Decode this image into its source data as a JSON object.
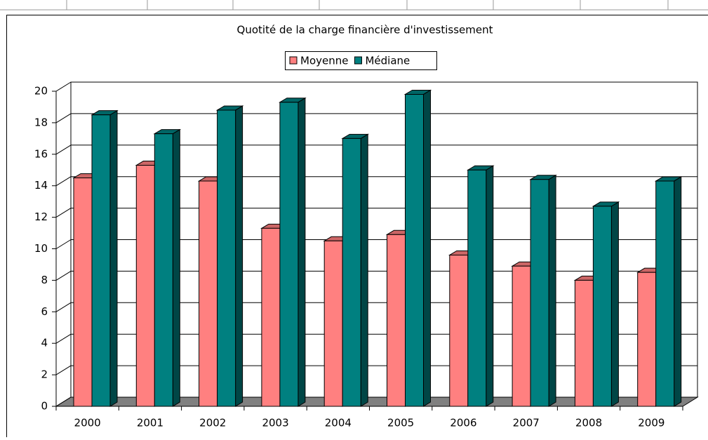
{
  "chart_data": {
    "type": "bar3d",
    "title": "Quotité de la charge financière d'investissement",
    "categories": [
      "2000",
      "2001",
      "2002",
      "2003",
      "2004",
      "2005",
      "2006",
      "2007",
      "2008",
      "2009"
    ],
    "series": [
      {
        "name": "Moyenne",
        "color": "#ff8080",
        "values": [
          14.5,
          15.3,
          14.3,
          11.3,
          10.5,
          10.9,
          9.6,
          8.9,
          8.0,
          8.5
        ]
      },
      {
        "name": "Médiane",
        "color": "#008080",
        "values": [
          18.5,
          17.3,
          18.8,
          19.3,
          17.0,
          19.8,
          15.0,
          14.4,
          12.7,
          14.3
        ]
      }
    ],
    "ylim": [
      0,
      20
    ],
    "yticks": [
      0,
      2,
      4,
      6,
      8,
      10,
      12,
      14,
      16,
      18,
      20
    ],
    "grid": true,
    "legend": "top"
  }
}
